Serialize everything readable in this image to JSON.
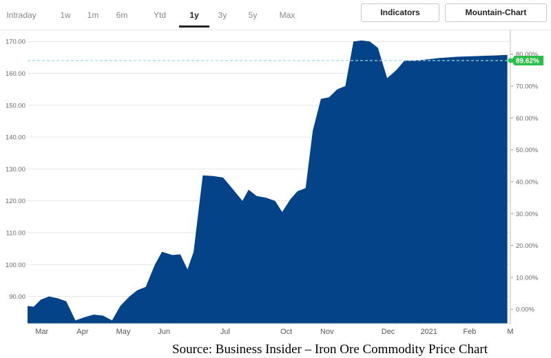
{
  "tabs": [
    "Intraday",
    "1w",
    "1m",
    "6m",
    "Ytd",
    "1y",
    "3y",
    "5y",
    "Max"
  ],
  "active_tab": "1y",
  "buttons": {
    "indicators": "Indicators",
    "chart_type": "Mountain-Chart"
  },
  "caption": "Source: Business Insider – Iron Ore Commodity Price Chart",
  "colors": {
    "area": "#054389",
    "badge": "#2cbf4a",
    "reference_line": "#9fd9dc",
    "grid": "#e6e6e6"
  },
  "chart_data": {
    "type": "area",
    "title": "",
    "xlabel": "",
    "ylabel": "",
    "ylim": [
      81.5,
      173.5
    ],
    "y_ticks": [
      "90.00",
      "100.00",
      "110.00",
      "120.00",
      "130.00",
      "140.00",
      "150.00",
      "160.00",
      "170.00"
    ],
    "y_tick_values": [
      90,
      100,
      110,
      120,
      130,
      140,
      150,
      160,
      170
    ],
    "y2_ticks": [
      "0.00%",
      "10.00%",
      "20.00%",
      "30.00%",
      "40.00%",
      "50.00%",
      "60.00%",
      "70.00%",
      "80.00%"
    ],
    "y2_tick_values": [
      0,
      10,
      20,
      30,
      40,
      50,
      60,
      70,
      80
    ],
    "y2_range_percent": [
      -4.5,
      87.5
    ],
    "current_change_label": "89.62%",
    "reference_value": 164,
    "x_labels": [
      "Mar",
      "Apr",
      "May",
      "Jun",
      "Jul",
      "Oct",
      "Nov",
      "Dec",
      "2021",
      "Feb",
      "M"
    ],
    "x_label_positions": [
      0.5,
      2.5,
      4.5,
      6.5,
      9.5,
      12.5,
      14.5,
      17.5,
      19.5,
      21.5,
      23.5
    ],
    "x_range_months": [
      -0.2,
      23.5
    ],
    "x": [
      -0.2,
      0.1,
      0.45,
      0.85,
      1.25,
      1.7,
      2.15,
      2.6,
      3.05,
      3.5,
      3.95,
      4.35,
      4.8,
      5.2,
      5.6,
      6.05,
      6.4,
      6.9,
      7.3,
      7.65,
      7.95,
      8.4,
      8.9,
      9.4,
      9.9,
      10.35,
      10.65,
      11.05,
      11.5,
      11.95,
      12.3,
      12.7,
      13.05,
      13.45,
      13.8,
      14.2,
      14.6,
      15.0,
      15.4,
      15.8,
      16.2,
      16.6,
      17.0,
      17.45,
      17.9,
      18.3,
      18.7,
      19.15,
      19.55,
      20.0,
      20.45,
      20.9,
      21.3,
      21.8,
      22.25,
      22.7,
      23.05,
      23.35
    ],
    "y": [
      87,
      86.8,
      89,
      90,
      89.5,
      88.5,
      82.5,
      83.5,
      84.3,
      84,
      82.5,
      87,
      90,
      92,
      93,
      100,
      104,
      103,
      103.2,
      98.5,
      104,
      128,
      127.8,
      127.3,
      123.5,
      120,
      123.5,
      121.5,
      121,
      120,
      116.5,
      120.5,
      123,
      124,
      142,
      152,
      152.5,
      155,
      156,
      170,
      170.3,
      170,
      168,
      158.5,
      161,
      164,
      164,
      164.2,
      164.5,
      164.8,
      165,
      165.2,
      165.3,
      165.4,
      165.5,
      165.6,
      165.7,
      165.8
    ]
  }
}
